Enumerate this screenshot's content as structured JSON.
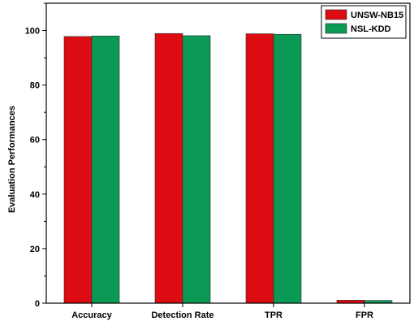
{
  "chart_data": {
    "type": "bar",
    "title": "",
    "xlabel": "",
    "ylabel": "Evaluation Performances",
    "categories": [
      "Accuracy",
      "Detection Rate",
      "TPR",
      "FPR"
    ],
    "series": [
      {
        "name": "UNSW-NB15",
        "values": [
          97.8,
          98.9,
          98.8,
          1.1
        ],
        "color": "#dd0c12"
      },
      {
        "name": "NSL-KDD",
        "values": [
          98.0,
          98.1,
          98.6,
          1.0
        ],
        "color": "#0b9a56"
      }
    ],
    "ylim": [
      0,
      110
    ],
    "yticks": [
      0,
      20,
      40,
      60,
      80,
      100
    ],
    "grid": false,
    "legend_position": "top-right"
  }
}
